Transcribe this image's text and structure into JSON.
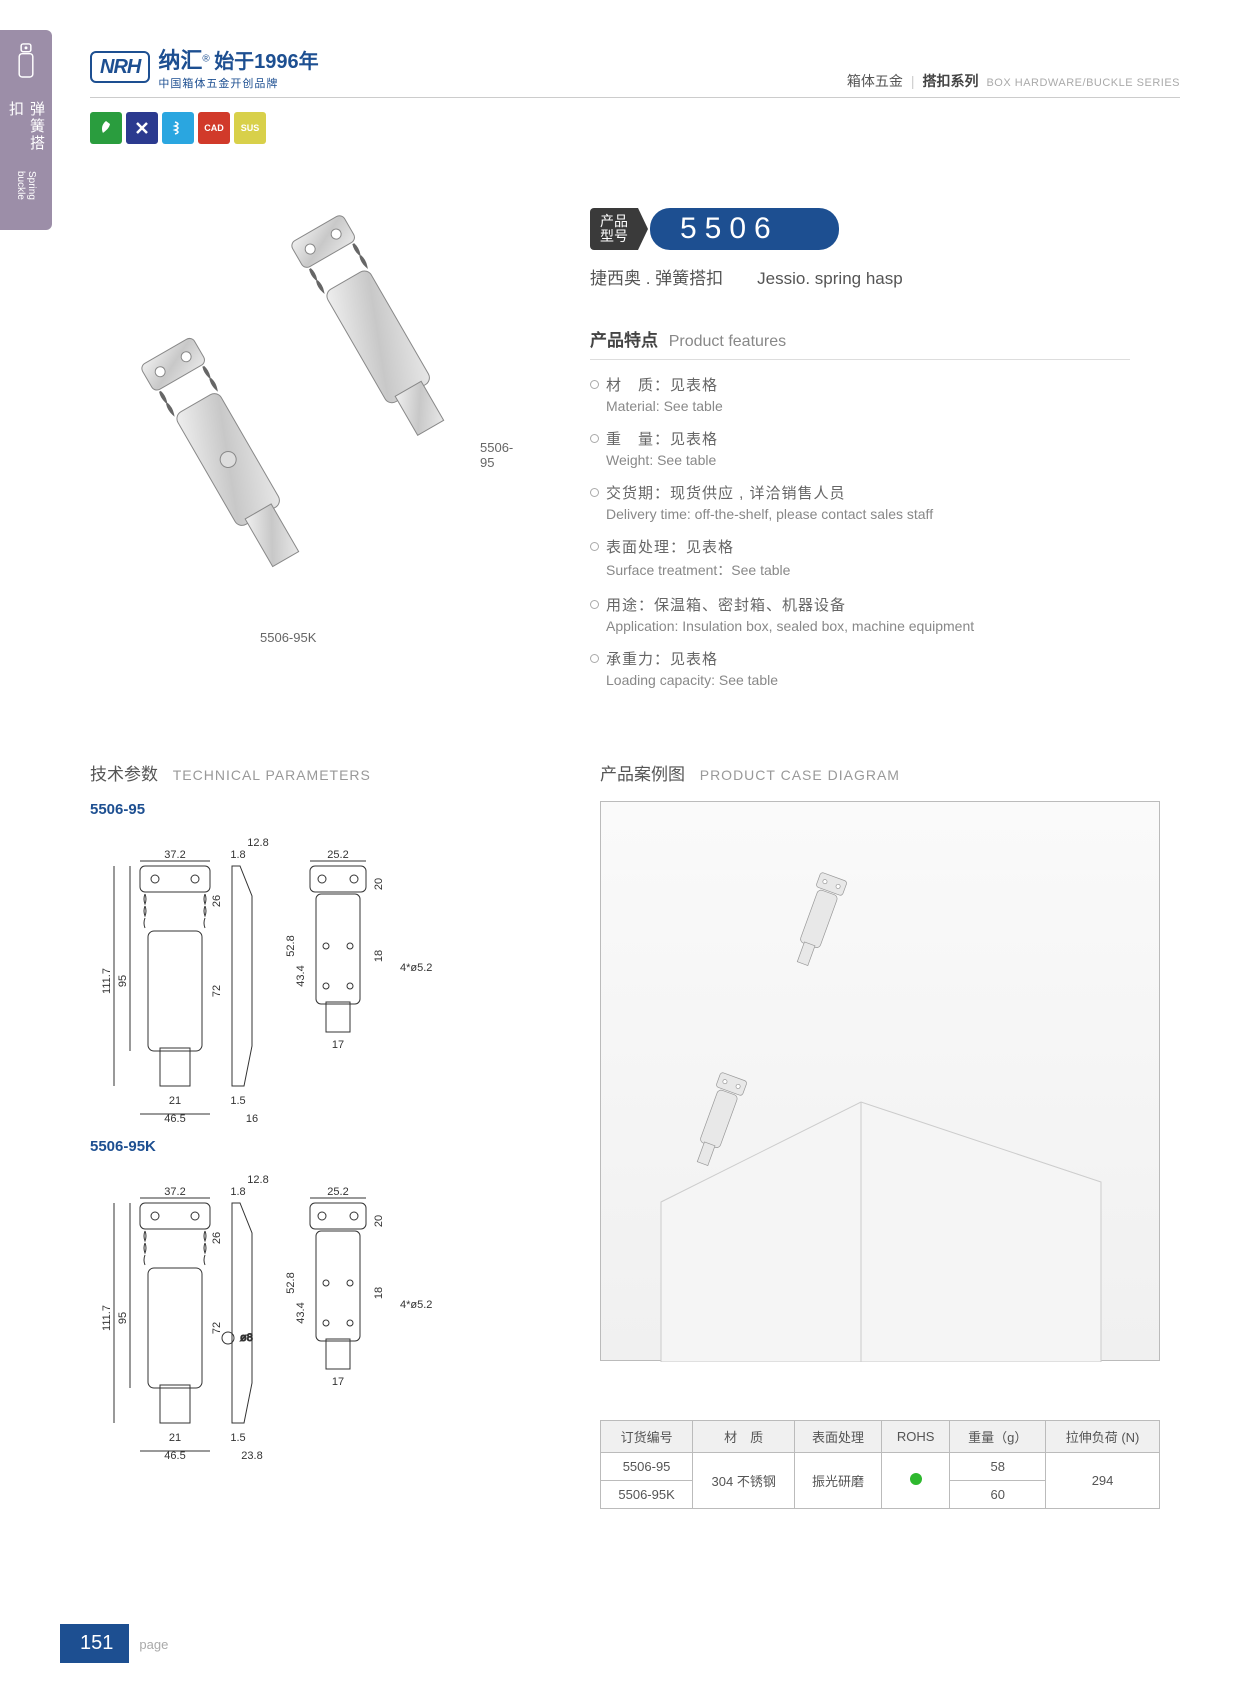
{
  "side_tab": {
    "cn": "弹簧搭扣",
    "en": "Spring buckle"
  },
  "header": {
    "logo": "NRH",
    "brand_cn": "纳汇",
    "brand_year": "始于1996年",
    "brand_sub": "中国箱体五金开创品牌",
    "cat_cn1": "箱体五金",
    "cat_cn2": "搭扣系列",
    "cat_en": "BOX HARDWARE/BUCKLE SERIES"
  },
  "badges": [
    {
      "bg": "#2a9d3e",
      "icon": "leaf"
    },
    {
      "bg": "#2b3a8f",
      "icon": "cross"
    },
    {
      "bg": "#2aa6e0",
      "icon": "spring"
    },
    {
      "bg": "#d13a2a",
      "icon": "CAD"
    },
    {
      "bg": "#d8d04a",
      "icon": "SUS"
    }
  ],
  "product_images": {
    "label1": "5506-95",
    "label2": "5506-95K"
  },
  "model": {
    "tag_cn1": "产品",
    "tag_cn2": "型号",
    "number": "5506",
    "name_cn": "捷西奥 . 弹簧搭扣",
    "name_en": "Jessio. spring hasp"
  },
  "features": {
    "title_cn": "产品特点",
    "title_en": "Product features",
    "items": [
      {
        "cn": "材　质：见表格",
        "en": "Material: See table"
      },
      {
        "cn": "重　量：见表格",
        "en": "Weight: See table"
      },
      {
        "cn": "交货期：现货供应 , 详洽销售人员",
        "en": "Delivery time: off-the-shelf, please contact sales staff"
      },
      {
        "cn": "表面处理：见表格",
        "en": "Surface treatment：See table"
      },
      {
        "cn": "用途：保温箱、密封箱、机器设备",
        "en": "Application: Insulation box, sealed box, machine equipment"
      },
      {
        "cn": "承重力：见表格",
        "en": "Loading capacity: See table"
      }
    ]
  },
  "tech": {
    "title_cn": "技术参数",
    "title_en": "TECHNICAL PARAMETERS",
    "variants": [
      {
        "name": "5506-95",
        "dims": {
          "top_w": "37.2",
          "side_t": "1.8",
          "prof_w": "12.8",
          "view3_w": "25.2",
          "h_total": "111.7",
          "h_inner": "95",
          "h_mid": "72",
          "h_top": "26",
          "bot_w": "46.5",
          "bot_inner": "21",
          "prof_bot": "16",
          "prof_t": "1.5",
          "v3_h": "52.8",
          "v3_h2": "43.4",
          "v3_t": "20",
          "v3_t2": "18",
          "hole": "4*ø5.2",
          "v3_bot": "17"
        }
      },
      {
        "name": "5506-95K",
        "dims": {
          "top_w": "37.2",
          "side_t": "1.8",
          "prof_w": "12.8",
          "view3_w": "25.2",
          "h_total": "111.7",
          "h_inner": "95",
          "h_mid": "72",
          "h_top": "26",
          "bot_w": "46.5",
          "bot_inner": "21",
          "prof_bot": "23.8",
          "prof_t": "1.5",
          "lock": "ø8",
          "v3_h": "52.8",
          "v3_h2": "43.4",
          "v3_t": "20",
          "v3_t2": "18",
          "hole": "4*ø5.2",
          "v3_bot": "17"
        }
      }
    ]
  },
  "case": {
    "title_cn": "产品案例图",
    "title_en": "PRODUCT CASE DIAGRAM"
  },
  "spec_table": {
    "headers": [
      "订货编号",
      "材　质",
      "表面处理",
      "ROHS",
      "重量（g）",
      "拉伸负荷 (N)"
    ],
    "rows": [
      {
        "code": "5506-95",
        "weight": "58"
      },
      {
        "code": "5506-95K",
        "weight": "60"
      }
    ],
    "material": "304 不锈钢",
    "surface": "振光研磨",
    "load": "294"
  },
  "footer": {
    "page": "151",
    "label": "page"
  }
}
